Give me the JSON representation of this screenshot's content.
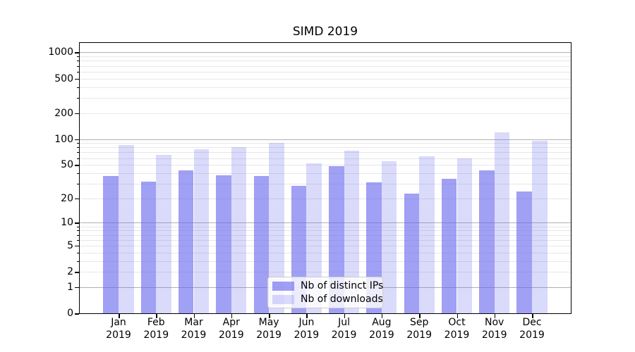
{
  "title": "SIMD 2019",
  "chart_data": {
    "type": "bar",
    "title": "SIMD 2019",
    "yscale": "log1p",
    "ylim": [
      0,
      1260
    ],
    "y_ticks": [
      1000,
      500,
      200,
      100,
      50,
      20,
      10,
      5,
      2,
      1,
      0
    ],
    "grid": true,
    "legend_position": "lower center",
    "x_tick_year": "2019",
    "categories": [
      "Jan",
      "Feb",
      "Mar",
      "Apr",
      "May",
      "Jun",
      "Jul",
      "Aug",
      "Sep",
      "Oct",
      "Nov",
      "Dec"
    ],
    "series": [
      {
        "name": "Nb of distinct IPs",
        "color": "rgba(102,102,237,0.62)",
        "values": [
          37,
          32,
          43,
          38,
          37,
          28,
          48,
          31,
          23,
          34,
          43,
          24
        ]
      },
      {
        "name": "Nb of downloads",
        "color": "rgba(102,102,237,0.24)",
        "values": [
          85,
          65,
          76,
          80,
          90,
          52,
          73,
          55,
          63,
          60,
          120,
          96
        ]
      }
    ],
    "colors": {
      "bar_base": "#6666ed",
      "grid_major": "#b0b0b0",
      "grid_minor": "#e7e7e7",
      "axis": "#000000",
      "background": "#ffffff"
    }
  }
}
